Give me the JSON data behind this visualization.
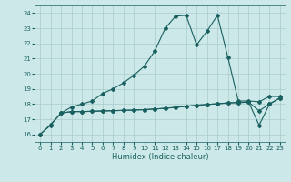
{
  "xlabel": "Humidex (Indice chaleur)",
  "bg_color": "#cce8e8",
  "line_color": "#1a6060",
  "grid_color": "#aacccc",
  "xlim": [
    -0.5,
    23.5
  ],
  "ylim": [
    15.5,
    24.5
  ],
  "yticks": [
    16,
    17,
    18,
    19,
    20,
    21,
    22,
    23,
    24
  ],
  "xticks": [
    0,
    1,
    2,
    3,
    4,
    5,
    6,
    7,
    8,
    9,
    10,
    11,
    12,
    13,
    14,
    15,
    16,
    17,
    18,
    19,
    20,
    21,
    22,
    23
  ],
  "line1_x": [
    0,
    1,
    2,
    3,
    4,
    5,
    6,
    7,
    8,
    9,
    10,
    11,
    12,
    13,
    14,
    15,
    16,
    17,
    18,
    19,
    20,
    21,
    22,
    23
  ],
  "line1_y": [
    16.0,
    16.6,
    17.4,
    17.8,
    18.0,
    18.2,
    18.7,
    19.0,
    19.4,
    19.9,
    20.5,
    21.5,
    23.0,
    23.8,
    23.85,
    21.9,
    22.8,
    23.85,
    21.1,
    18.2,
    18.2,
    18.15,
    18.5,
    18.5
  ],
  "line2_x": [
    0,
    1,
    2,
    3,
    4,
    5,
    6,
    7,
    8,
    9,
    10,
    11,
    12,
    13,
    14,
    15,
    16,
    17,
    18,
    19,
    20,
    21,
    22,
    23
  ],
  "line2_y": [
    16.0,
    16.65,
    17.4,
    17.5,
    17.5,
    17.52,
    17.54,
    17.56,
    17.58,
    17.6,
    17.63,
    17.67,
    17.72,
    17.78,
    17.85,
    17.92,
    17.97,
    18.02,
    18.07,
    18.1,
    18.12,
    17.55,
    18.0,
    18.4
  ],
  "line3_x": [
    2,
    3,
    4,
    5,
    6,
    7,
    8,
    9,
    10,
    11,
    12,
    13,
    14,
    15,
    16,
    17,
    18,
    19,
    20,
    21,
    22,
    23
  ],
  "line3_y": [
    17.4,
    17.5,
    17.5,
    17.52,
    17.54,
    17.56,
    17.58,
    17.6,
    17.63,
    17.67,
    17.72,
    17.78,
    17.85,
    17.92,
    17.97,
    18.02,
    18.07,
    18.1,
    18.12,
    16.6,
    18.0,
    18.4
  ]
}
